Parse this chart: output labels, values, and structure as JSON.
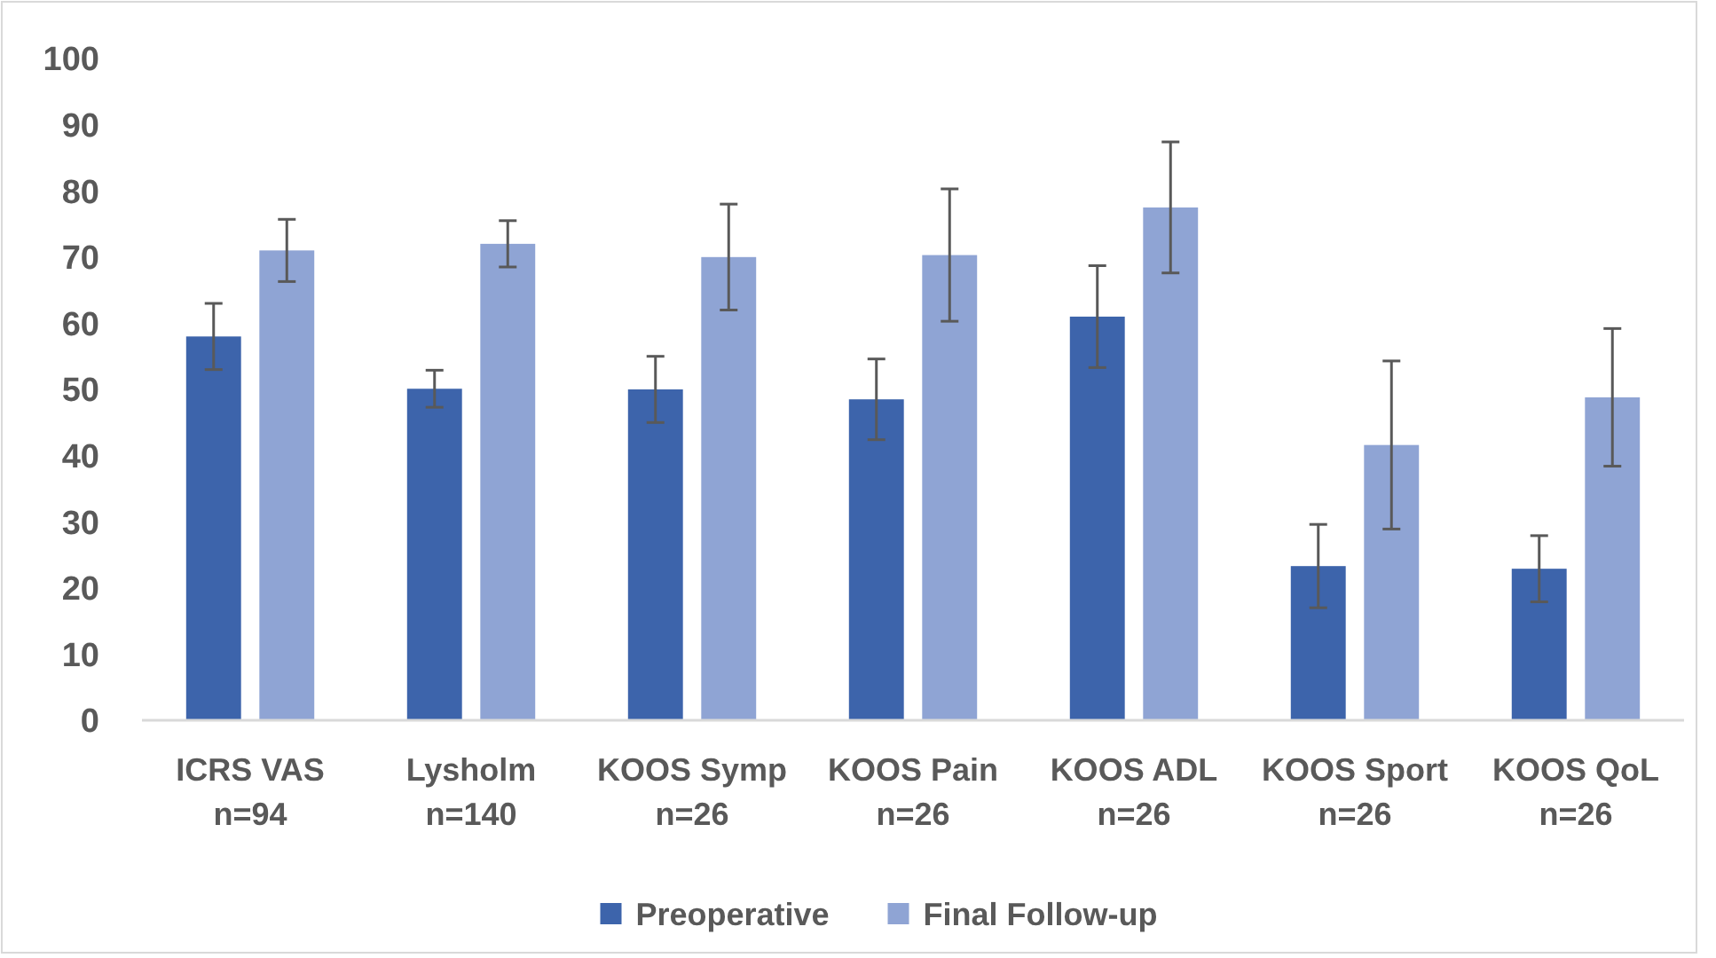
{
  "chart_data": {
    "type": "bar",
    "categories": [
      "ICRS VAS\nn=94",
      "Lysholm\nn=140",
      "KOOS Symp\nn=26",
      "KOOS Pain\nn=26",
      "KOOS ADL\nn=26",
      "KOOS Sport\nn=26",
      "KOOS QoL\nn=26"
    ],
    "series": [
      {
        "name": "Preoperative",
        "color": "#3d64ab",
        "values": [
          58,
          50.1,
          50,
          48.5,
          61,
          23.3,
          22.9
        ],
        "errors": [
          5,
          2.8,
          5,
          6.1,
          7.7,
          6.3,
          5
        ]
      },
      {
        "name": "Final Follow-up",
        "color": "#8fa4d4",
        "values": [
          71,
          72,
          70,
          70.3,
          77.5,
          41.6,
          48.8
        ],
        "errors": [
          4.7,
          3.5,
          8,
          10,
          9.9,
          12.7,
          10.4
        ]
      }
    ],
    "ylim": [
      0,
      100
    ],
    "yticks": [
      0,
      10,
      20,
      30,
      40,
      50,
      60,
      70,
      80,
      90,
      100
    ],
    "grid": false,
    "legend": "bottom"
  }
}
